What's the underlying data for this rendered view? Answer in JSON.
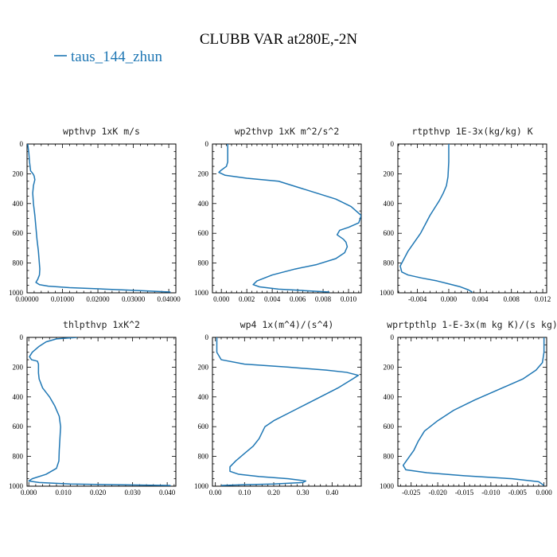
{
  "figure": {
    "title": "CLUBB VAR at280E,-2N",
    "legend": {
      "label": "taus_144_zhun",
      "color": "#1f77b4"
    }
  },
  "chart_data": [
    {
      "type": "line",
      "title": "wpthvp   1xK m/s",
      "xlim": [
        0,
        0.042
      ],
      "ylim": [
        1000,
        0
      ],
      "xticks": [
        0,
        0.01,
        0.02,
        0.03,
        0.04
      ],
      "xtick_labels": [
        "0.00000",
        "0.01000",
        "0.02000",
        "0.03000",
        "0.04000"
      ],
      "yticks": [
        0,
        200,
        400,
        600,
        800,
        1000
      ],
      "ytick_labels": [
        "0",
        "200",
        "400",
        "600",
        "800",
        "1000"
      ],
      "series": [
        {
          "color": "#1f77b4",
          "x": [
            0.0002,
            0.0005,
            0.0007,
            0.001,
            0.0015,
            0.0018,
            0.002,
            0.0022,
            0.0018,
            0.0016,
            0.0018,
            0.0022,
            0.0025,
            0.0028,
            0.0032,
            0.0034,
            0.0036,
            0.0035,
            0.003,
            0.0025,
            0.0035,
            0.006,
            0.012,
            0.022,
            0.032,
            0.0405
          ],
          "y": [
            0,
            60,
            120,
            180,
            195,
            205,
            215,
            240,
            280,
            330,
            400,
            480,
            560,
            640,
            720,
            780,
            840,
            880,
            910,
            930,
            945,
            955,
            965,
            975,
            985,
            995
          ]
        }
      ]
    },
    {
      "type": "line",
      "title": "wp2thvp   1xK m^2/s^2",
      "xlim": [
        -0.0007,
        0.011
      ],
      "ylim": [
        1000,
        0
      ],
      "xticks": [
        0,
        0.002,
        0.004,
        0.006,
        0.008,
        0.01
      ],
      "xtick_labels": [
        "0.000",
        "0.002",
        "0.004",
        "0.006",
        "0.008",
        "0.010"
      ],
      "yticks": [
        0,
        200,
        400,
        600,
        800,
        1000
      ],
      "ytick_labels": [
        "0",
        "200",
        "400",
        "600",
        "800",
        "1000"
      ],
      "series": [
        {
          "color": "#1f77b4",
          "x": [
            0.0005,
            0.0005,
            0.0005,
            0.0004,
            0.0,
            -0.0002,
            0.0003,
            0.002,
            0.0045,
            0.006,
            0.0075,
            0.009,
            0.0102,
            0.011,
            0.0108,
            0.01,
            0.0093,
            0.0091,
            0.0096,
            0.0098,
            0.0099,
            0.0097,
            0.009,
            0.0075,
            0.0058,
            0.004,
            0.0028,
            0.0025,
            0.003,
            0.0045,
            0.0065,
            0.0085
          ],
          "y": [
            0,
            60,
            120,
            150,
            175,
            190,
            210,
            230,
            250,
            290,
            330,
            370,
            420,
            480,
            530,
            560,
            580,
            610,
            640,
            660,
            690,
            730,
            770,
            810,
            840,
            880,
            920,
            945,
            960,
            975,
            985,
            995
          ]
        }
      ]
    },
    {
      "type": "line",
      "title": "rtpthvp   1E-3x(kg/kg) K",
      "xlim": [
        -0.0065,
        0.0125
      ],
      "ylim": [
        1000,
        0
      ],
      "xticks": [
        -0.004,
        0,
        0.004,
        0.008,
        0.012
      ],
      "xtick_labels": [
        "-0.004",
        "0.000",
        "0.004",
        "0.008",
        "0.012"
      ],
      "yticks": [
        0,
        200,
        400,
        600,
        800,
        1000
      ],
      "ytick_labels": [
        "0",
        "200",
        "400",
        "600",
        "800",
        "1000"
      ],
      "series": [
        {
          "color": "#1f77b4",
          "x": [
            0.0,
            0.0,
            -0.0001,
            -0.0003,
            -0.0007,
            -0.0012,
            -0.0018,
            -0.0024,
            -0.003,
            -0.0036,
            -0.0044,
            -0.0052,
            -0.0058,
            -0.0062,
            -0.006,
            -0.0052,
            -0.0035,
            -0.0015,
            0.0,
            0.0015,
            0.0025,
            0.003
          ],
          "y": [
            0,
            120,
            220,
            280,
            330,
            380,
            430,
            480,
            540,
            600,
            660,
            720,
            780,
            820,
            860,
            880,
            900,
            920,
            940,
            960,
            980,
            995
          ]
        }
      ]
    },
    {
      "type": "line",
      "title": "thlpthvp   1xK^2",
      "xlim": [
        -0.0005,
        0.0425
      ],
      "ylim": [
        1000,
        0
      ],
      "xticks": [
        0,
        0.01,
        0.02,
        0.03,
        0.04
      ],
      "xtick_labels": [
        "0.000",
        "0.010",
        "0.020",
        "0.030",
        "0.040"
      ],
      "yticks": [
        0,
        200,
        400,
        600,
        800,
        1000
      ],
      "ytick_labels": [
        "0",
        "200",
        "400",
        "600",
        "800",
        "1000"
      ],
      "series": [
        {
          "color": "#1f77b4",
          "x": [
            0.014,
            0.008,
            0.005,
            0.003,
            0.001,
            0.0002,
            0.0008,
            0.0025,
            0.0028,
            0.0028,
            0.003,
            0.004,
            0.006,
            0.0075,
            0.0088,
            0.0092,
            0.009,
            0.0088,
            0.0087,
            0.008,
            0.005,
            0.001,
            0.0,
            0.003,
            0.012,
            0.025,
            0.041
          ],
          "y": [
            0,
            10,
            30,
            60,
            100,
            130,
            150,
            160,
            180,
            240,
            280,
            340,
            400,
            460,
            530,
            600,
            680,
            760,
            830,
            880,
            920,
            950,
            965,
            975,
            985,
            990,
            995
          ]
        }
      ]
    },
    {
      "type": "line",
      "title": "wp4   1x(m^4)/(s^4)",
      "xlim": [
        -0.01,
        0.5
      ],
      "ylim": [
        1000,
        0
      ],
      "xticks": [
        0,
        0.1,
        0.2,
        0.3,
        0.4
      ],
      "xtick_labels": [
        "0.00",
        "0.10",
        "0.20",
        "0.30",
        "0.40"
      ],
      "yticks": [
        0,
        200,
        400,
        600,
        800,
        1000
      ],
      "ytick_labels": [
        "0",
        "200",
        "400",
        "600",
        "800",
        "1000"
      ],
      "series": [
        {
          "color": "#1f77b4",
          "x": [
            0.005,
            0.005,
            0.02,
            0.1,
            0.25,
            0.38,
            0.45,
            0.49,
            0.47,
            0.42,
            0.34,
            0.26,
            0.2,
            0.17,
            0.16,
            0.15,
            0.13,
            0.1,
            0.07,
            0.05,
            0.05,
            0.08,
            0.15,
            0.25,
            0.31,
            0.3,
            0.2,
            0.1,
            0.02
          ],
          "y": [
            0,
            100,
            150,
            180,
            200,
            220,
            235,
            255,
            280,
            340,
            420,
            500,
            560,
            600,
            640,
            680,
            730,
            780,
            830,
            870,
            900,
            920,
            935,
            950,
            965,
            975,
            985,
            990,
            995
          ]
        }
      ]
    },
    {
      "type": "line",
      "title": "wprtpthlp   1-E-3x(m kg K)/(s kg)",
      "xlim": [
        -0.0275,
        0.0005
      ],
      "ylim": [
        1000,
        0
      ],
      "xticks": [
        -0.025,
        -0.02,
        -0.015,
        -0.01,
        -0.005,
        0
      ],
      "xtick_labels": [
        "-0.025",
        "-0.020",
        "-0.015",
        "-0.010",
        "-0.005",
        "0.000"
      ],
      "yticks": [
        0,
        200,
        400,
        600,
        800,
        1000
      ],
      "ytick_labels": [
        "0",
        "200",
        "400",
        "600",
        "800",
        "1000"
      ],
      "series": [
        {
          "color": "#1f77b4",
          "x": [
            0.0,
            0.0,
            -0.0003,
            -0.0015,
            -0.004,
            -0.0085,
            -0.013,
            -0.017,
            -0.02,
            -0.0225,
            -0.0237,
            -0.0245,
            -0.0255,
            -0.0265,
            -0.026,
            -0.022,
            -0.015,
            -0.006,
            -0.001,
            0.0
          ],
          "y": [
            0,
            100,
            170,
            220,
            280,
            350,
            420,
            490,
            560,
            630,
            700,
            760,
            810,
            860,
            890,
            910,
            930,
            950,
            970,
            995
          ]
        }
      ]
    }
  ]
}
